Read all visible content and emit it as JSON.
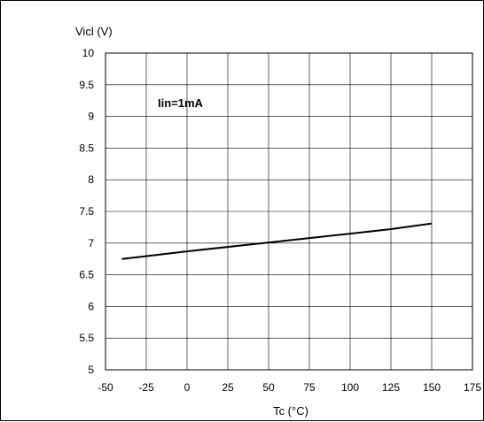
{
  "chart_data": {
    "type": "line",
    "title": "",
    "xlabel": "Tc (°C)",
    "ylabel": "Vicl (V)",
    "xlim": [
      -50,
      175
    ],
    "ylim": [
      5,
      10
    ],
    "xticks": [
      -50,
      -25,
      0,
      25,
      50,
      75,
      100,
      125,
      150,
      175
    ],
    "yticks": [
      5,
      5.5,
      6,
      6.5,
      7,
      7.5,
      8,
      8.5,
      9,
      9.5,
      10
    ],
    "xtick_labels": [
      "-50",
      "-25",
      "0",
      "25",
      "50",
      "75",
      "100",
      "125",
      "150",
      "175"
    ],
    "ytick_labels": [
      "5",
      "5.5",
      "6",
      "6.5",
      "7",
      "7.5",
      "8",
      "8.5",
      "9",
      "9.5",
      "10"
    ],
    "grid": true,
    "annotation": "Iin=1mA",
    "series": [
      {
        "x": [
          -40,
          0,
          25,
          50,
          75,
          100,
          125,
          150
        ],
        "y": [
          6.75,
          6.87,
          6.94,
          7.01,
          7.08,
          7.15,
          7.22,
          7.31
        ]
      }
    ],
    "colors": {
      "line": "#000000",
      "grid": "#000000",
      "background": "#ffffff"
    }
  }
}
